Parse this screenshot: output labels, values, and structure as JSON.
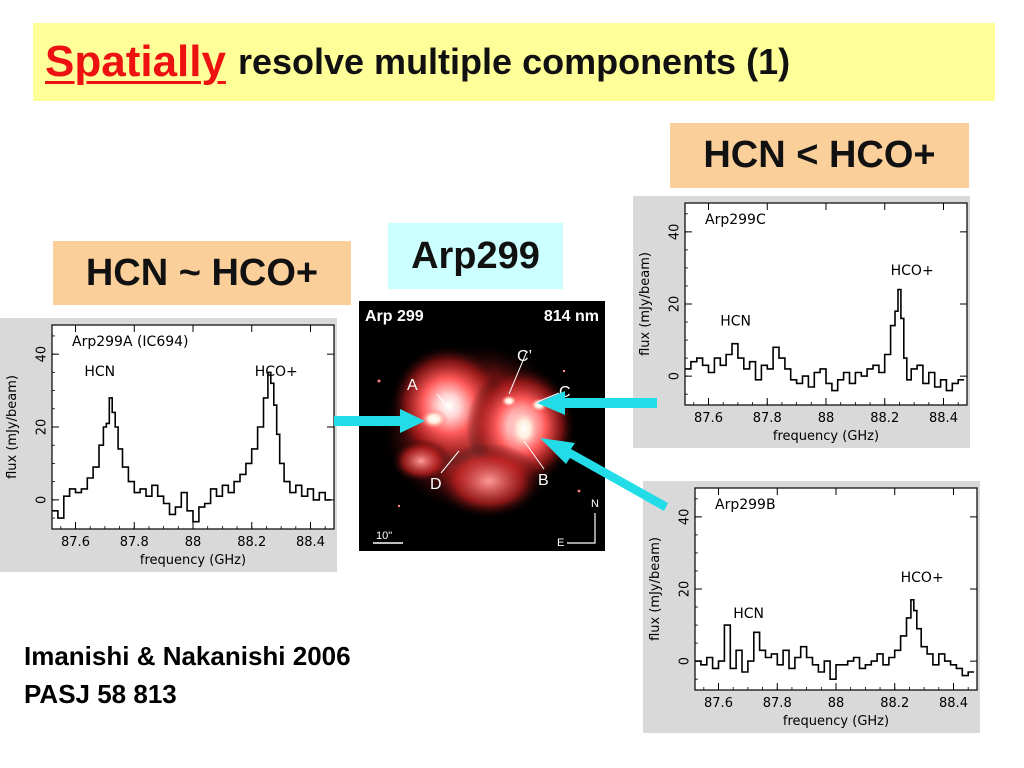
{
  "title": {
    "emph": "Spatially",
    "rest": "resolve multiple components (1)"
  },
  "labels": {
    "left": "HCN ~ HCO+",
    "center": "Arp299",
    "right": "HCN < HCO+"
  },
  "citation": {
    "line1": "Imanishi & Nakanishi 2006",
    "line2": "PASJ 58 813"
  },
  "image": {
    "name": "Arp 299",
    "band": "814 nm",
    "scale": "10\"",
    "compass": {
      "n": "N",
      "e": "E"
    },
    "markers": [
      "A",
      "C’",
      "C",
      "D",
      "B"
    ]
  },
  "colors": {
    "title_emph": "#ee1111",
    "title_bg": "#ffff99",
    "label_orange": "#fbcf9a",
    "label_cyan": "#ccffff",
    "arrow": "#22dde8"
  },
  "chart_data": [
    {
      "type": "line",
      "panel": "A",
      "title": "Arp299A (IC694)",
      "xlabel": "frequency (GHz)",
      "ylabel": "flux (mJy/beam)",
      "xlim": [
        87.52,
        88.48
      ],
      "ylim": [
        -8,
        48
      ],
      "xticks": [
        87.6,
        87.8,
        88,
        88.2,
        88.4
      ],
      "yticks": [
        0,
        20,
        40
      ],
      "annotations": [
        {
          "text": "HCN",
          "x": 87.63,
          "y": 34
        },
        {
          "text": "HCO+",
          "x": 88.21,
          "y": 34
        }
      ],
      "series": [
        {
          "x": [
            87.53,
            87.55,
            87.57,
            87.59,
            87.61,
            87.63,
            87.65,
            87.67,
            87.69,
            87.7,
            87.71,
            87.72,
            87.73,
            87.74,
            87.75,
            87.77,
            87.79,
            87.81,
            87.83,
            87.85,
            87.87,
            87.89,
            87.91,
            87.93,
            87.95,
            87.97,
            87.99,
            88.01,
            88.03,
            88.05,
            88.07,
            88.09,
            88.11,
            88.13,
            88.15,
            88.17,
            88.19,
            88.21,
            88.23,
            88.25,
            88.26,
            88.27,
            88.28,
            88.29,
            88.3,
            88.32,
            88.34,
            88.36,
            88.38,
            88.4,
            88.42,
            88.44,
            88.46
          ],
          "y": [
            -3,
            -5,
            1,
            3,
            2,
            3,
            6,
            9,
            15,
            20,
            21,
            28,
            24,
            20,
            14,
            9,
            5,
            2,
            3,
            1,
            4,
            1,
            -1,
            -4,
            -2,
            2,
            -3,
            -6,
            -2,
            -1,
            3,
            1,
            4,
            2,
            5,
            7,
            10,
            14,
            20,
            28,
            35,
            32,
            26,
            18,
            10,
            5,
            2,
            4,
            1,
            3,
            0,
            2,
            0
          ]
        }
      ]
    },
    {
      "type": "line",
      "panel": "C",
      "title": "Arp299C",
      "xlabel": "frequency (GHz)",
      "ylabel": "flux (mJy/beam)",
      "xlim": [
        87.52,
        88.48
      ],
      "ylim": [
        -8,
        48
      ],
      "xticks": [
        87.6,
        87.8,
        88,
        88.2,
        88.4
      ],
      "yticks": [
        0,
        20,
        40
      ],
      "annotations": [
        {
          "text": "HCN",
          "x": 87.64,
          "y": 14
        },
        {
          "text": "HCO+",
          "x": 88.22,
          "y": 28
        }
      ],
      "series": [
        {
          "x": [
            87.53,
            87.55,
            87.57,
            87.59,
            87.61,
            87.63,
            87.65,
            87.67,
            87.69,
            87.71,
            87.73,
            87.75,
            87.77,
            87.79,
            87.81,
            87.83,
            87.85,
            87.87,
            87.89,
            87.91,
            87.93,
            87.95,
            87.97,
            87.99,
            88.01,
            88.03,
            88.05,
            88.07,
            88.09,
            88.11,
            88.13,
            88.15,
            88.17,
            88.19,
            88.21,
            88.23,
            88.24,
            88.25,
            88.26,
            88.27,
            88.28,
            88.3,
            88.32,
            88.34,
            88.36,
            88.38,
            88.4,
            88.42,
            88.44,
            88.46
          ],
          "y": [
            2,
            4,
            5,
            3,
            1,
            5,
            3,
            6,
            9,
            5,
            2,
            4,
            -1,
            3,
            2,
            8,
            5,
            2,
            -1,
            -2,
            0,
            -3,
            1,
            2,
            -2,
            -4,
            -1,
            1,
            -2,
            1,
            0,
            2,
            3,
            1,
            6,
            14,
            18,
            24,
            16,
            5,
            -1,
            2,
            3,
            -2,
            1,
            -3,
            -1,
            -4,
            -2,
            -1
          ]
        }
      ]
    },
    {
      "type": "line",
      "panel": "B",
      "title": "Arp299B",
      "xlabel": "frequency (GHz)",
      "ylabel": "flux (mJy/beam)",
      "xlim": [
        87.52,
        88.48
      ],
      "ylim": [
        -8,
        48
      ],
      "xticks": [
        87.6,
        87.8,
        88,
        88.2,
        88.4
      ],
      "yticks": [
        0,
        20,
        40
      ],
      "annotations": [
        {
          "text": "HCN",
          "x": 87.65,
          "y": 12
        },
        {
          "text": "HCO+",
          "x": 88.22,
          "y": 22
        }
      ],
      "series": [
        {
          "x": [
            87.53,
            87.55,
            87.57,
            87.59,
            87.61,
            87.63,
            87.65,
            87.67,
            87.69,
            87.71,
            87.73,
            87.75,
            87.77,
            87.79,
            87.81,
            87.83,
            87.85,
            87.87,
            87.89,
            87.91,
            87.93,
            87.95,
            87.97,
            87.99,
            88.01,
            88.03,
            88.05,
            88.07,
            88.09,
            88.11,
            88.13,
            88.15,
            88.17,
            88.19,
            88.21,
            88.23,
            88.25,
            88.26,
            88.27,
            88.28,
            88.3,
            88.32,
            88.34,
            88.36,
            88.38,
            88.4,
            88.42,
            88.44,
            88.46
          ],
          "y": [
            0,
            -1,
            1,
            -2,
            0,
            10,
            -2,
            3,
            -3,
            0,
            8,
            3,
            1,
            2,
            -1,
            3,
            -2,
            1,
            4,
            1,
            -1,
            -3,
            0,
            -5,
            -1,
            -1,
            0,
            1,
            -2,
            -1,
            0,
            2,
            -1,
            1,
            3,
            7,
            12,
            17,
            14,
            9,
            4,
            2,
            -1,
            2,
            0,
            -1,
            -2,
            -4,
            -3
          ]
        }
      ]
    }
  ]
}
